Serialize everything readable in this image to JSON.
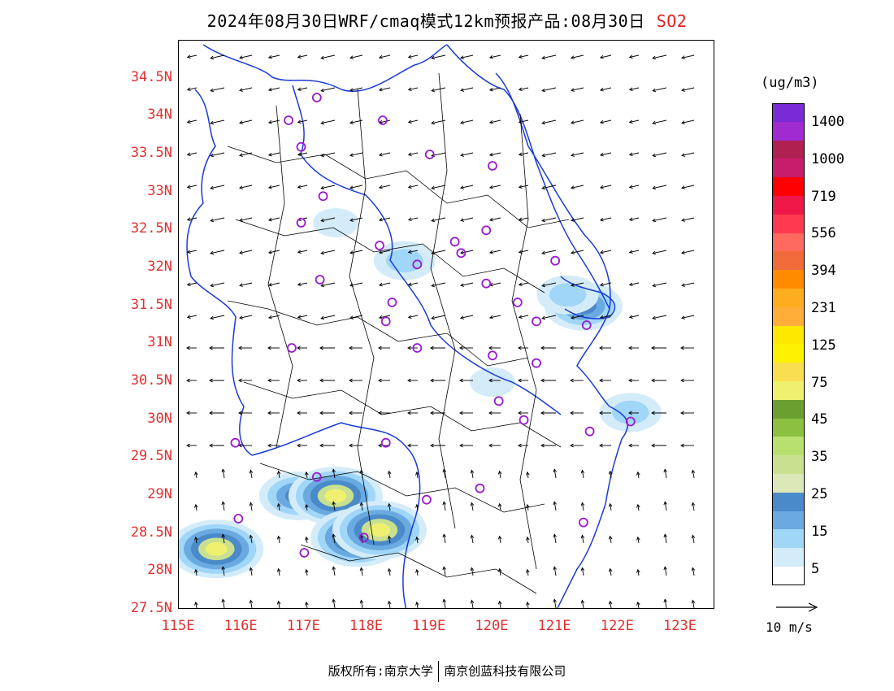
{
  "title": {
    "main": "2024年08月30日WRF/cmaq模式12km预报产品:08月30日",
    "species": "SO2"
  },
  "axes": {
    "lat_labels": [
      "34.5N",
      "34N",
      "33.5N",
      "33N",
      "32.5N",
      "32N",
      "31.5N",
      "31N",
      "30.5N",
      "30N",
      "29.5N",
      "29N",
      "28.5N",
      "28N",
      "27.5N"
    ],
    "lon_labels": [
      "115E",
      "116E",
      "117E",
      "118E",
      "119E",
      "120E",
      "121E",
      "122E",
      "123E"
    ]
  },
  "legend": {
    "units": "(ug/m3)",
    "colors": [
      "#7a2bd6",
      "#a02bd0",
      "#b02050",
      "#c81c6c",
      "#ff0000",
      "#f01848",
      "#ff3a50",
      "#ff6a60",
      "#f06a3a",
      "#ff8c00",
      "#ffad20",
      "#ffae3a",
      "#ffe800",
      "#fff200",
      "#f8de50",
      "#f0f070",
      "#6aa030",
      "#8cc040",
      "#b8e070",
      "#c8e090",
      "#dce8b8",
      "#4a8ac8",
      "#6aaae0",
      "#a0d6f8",
      "#d4ecfa",
      "#ffffff"
    ],
    "labels": [
      "1400",
      "1000",
      "719",
      "556",
      "394",
      "231",
      "125",
      "75",
      "45",
      "35",
      "25",
      "15",
      "5"
    ]
  },
  "wind_reference": {
    "label": "10 m/s"
  },
  "footer": {
    "left": "版权所有:南京大学",
    "right": "南京创蓝科技有限公司"
  },
  "stations": [
    [
      117.2,
      34.25
    ],
    [
      116.75,
      33.95
    ],
    [
      118.25,
      33.95
    ],
    [
      116.95,
      33.6
    ],
    [
      119.0,
      33.5
    ],
    [
      120.0,
      33.35
    ],
    [
      117.3,
      32.95
    ],
    [
      116.95,
      32.6
    ],
    [
      119.9,
      32.5
    ],
    [
      118.2,
      32.3
    ],
    [
      119.4,
      32.35
    ],
    [
      119.5,
      32.2
    ],
    [
      118.8,
      32.05
    ],
    [
      121.0,
      32.1
    ],
    [
      117.25,
      31.85
    ],
    [
      119.9,
      31.8
    ],
    [
      118.4,
      31.55
    ],
    [
      120.4,
      31.55
    ],
    [
      118.3,
      31.3
    ],
    [
      120.7,
      31.3
    ],
    [
      121.5,
      31.25
    ],
    [
      116.8,
      30.95
    ],
    [
      118.8,
      30.95
    ],
    [
      120.0,
      30.85
    ],
    [
      120.7,
      30.75
    ],
    [
      120.1,
      30.25
    ],
    [
      120.5,
      30.0
    ],
    [
      121.55,
      29.85
    ],
    [
      122.2,
      29.98
    ],
    [
      115.9,
      29.7
    ],
    [
      118.3,
      29.7
    ],
    [
      117.2,
      29.25
    ],
    [
      119.8,
      29.1
    ],
    [
      118.95,
      28.95
    ],
    [
      121.45,
      28.65
    ],
    [
      115.95,
      28.7
    ],
    [
      117.95,
      28.45
    ],
    [
      117.0,
      28.25
    ]
  ],
  "pollution_patches": [
    {
      "lon": 115.6,
      "lat": 28.3,
      "level": 4
    },
    {
      "lon": 116.9,
      "lat": 29.0,
      "level": 3
    },
    {
      "lon": 117.5,
      "lat": 29.0,
      "level": 4
    },
    {
      "lon": 117.85,
      "lat": 28.45,
      "level": 4
    },
    {
      "lon": 118.2,
      "lat": 28.55,
      "level": 4
    },
    {
      "lon": 121.45,
      "lat": 31.5,
      "level": 3
    },
    {
      "lon": 121.2,
      "lat": 31.65,
      "level": 2
    },
    {
      "lon": 118.6,
      "lat": 32.1,
      "level": 2
    },
    {
      "lon": 122.2,
      "lat": 30.1,
      "level": 2
    },
    {
      "lon": 120.0,
      "lat": 30.5,
      "level": 1
    },
    {
      "lon": 117.5,
      "lat": 32.6,
      "level": 1
    }
  ]
}
